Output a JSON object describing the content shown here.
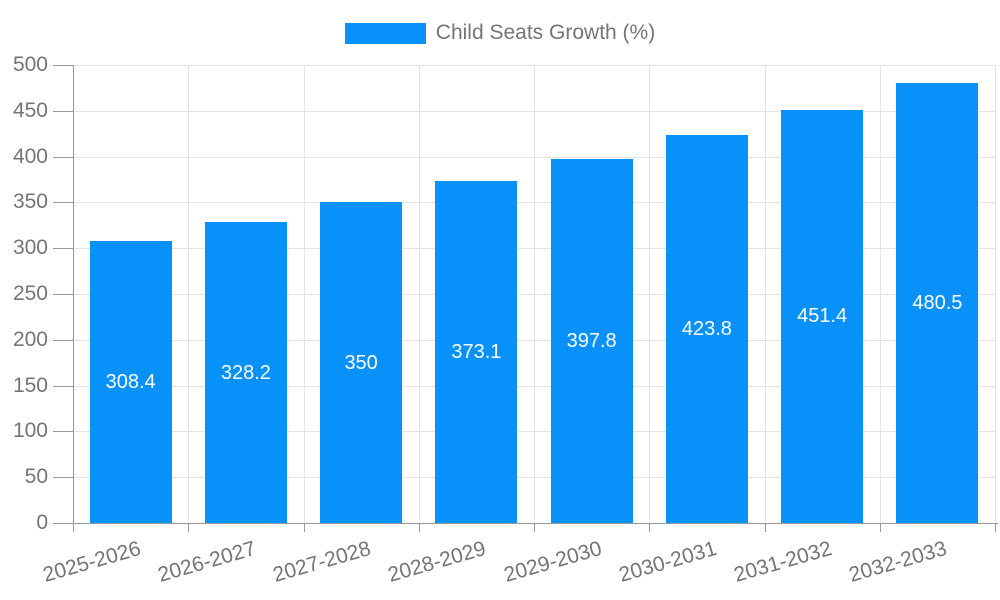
{
  "legend": {
    "label": "Child Seats Growth (%)"
  },
  "chart_data": {
    "type": "bar",
    "title": "",
    "xlabel": "",
    "ylabel": "",
    "categories": [
      "2025-2026",
      "2026-2027",
      "2027-2028",
      "2028-2029",
      "2029-2030",
      "2030-2031",
      "2031-2032",
      "2032-2033"
    ],
    "series": [
      {
        "name": "Child Seats Growth (%)",
        "values": [
          308.4,
          328.2,
          350,
          373.1,
          397.8,
          423.8,
          451.4,
          480.5
        ]
      }
    ],
    "value_labels": [
      "308.4",
      "328.2",
      "350",
      "373.1",
      "397.8",
      "423.8",
      "451.4",
      "480.5"
    ],
    "ylim": [
      0,
      500
    ],
    "ytick_step": 50,
    "grid": true,
    "legend_position": "top",
    "x_label_rotation_deg": -16,
    "colors": {
      "bar": "#0892f9",
      "axis": "#999999",
      "grid": "#e4e4e4",
      "tick_text": "#757575",
      "legend_text": "#757575",
      "bar_label_text": "#ffffff"
    }
  }
}
